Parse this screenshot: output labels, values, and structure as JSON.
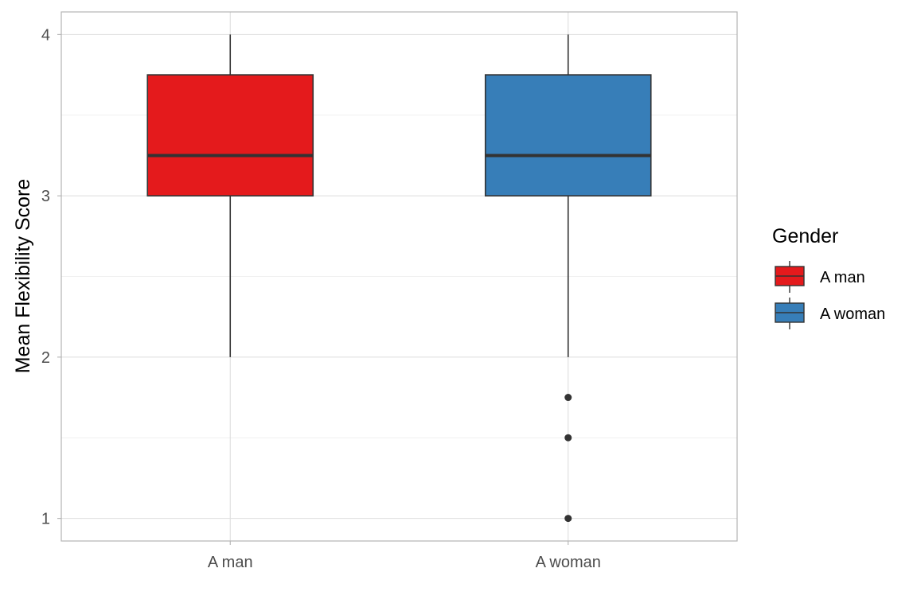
{
  "chart_data": {
    "type": "box",
    "title": "",
    "xlabel": "",
    "ylabel": "Mean Flexibility Score",
    "ylim": [
      0.86,
      4.14
    ],
    "yticks": [
      1,
      2,
      3,
      4
    ],
    "y_minor_ticks": [
      1.5,
      2.5,
      3.5
    ],
    "grid": true,
    "categories": [
      "A man",
      "A woman"
    ],
    "series": [
      {
        "name": "A man",
        "color": "#E41A1C",
        "min": 2.0,
        "q1": 3.0,
        "median": 3.25,
        "q3": 3.75,
        "max": 4.0,
        "outliers": []
      },
      {
        "name": "A woman",
        "color": "#377EB8",
        "min": 2.0,
        "q1": 3.0,
        "median": 3.25,
        "q3": 3.75,
        "max": 4.0,
        "outliers": [
          1.75,
          1.5,
          1.0
        ]
      }
    ],
    "legend": {
      "title": "Gender",
      "position": "right",
      "entries": [
        "A man",
        "A woman"
      ]
    }
  }
}
